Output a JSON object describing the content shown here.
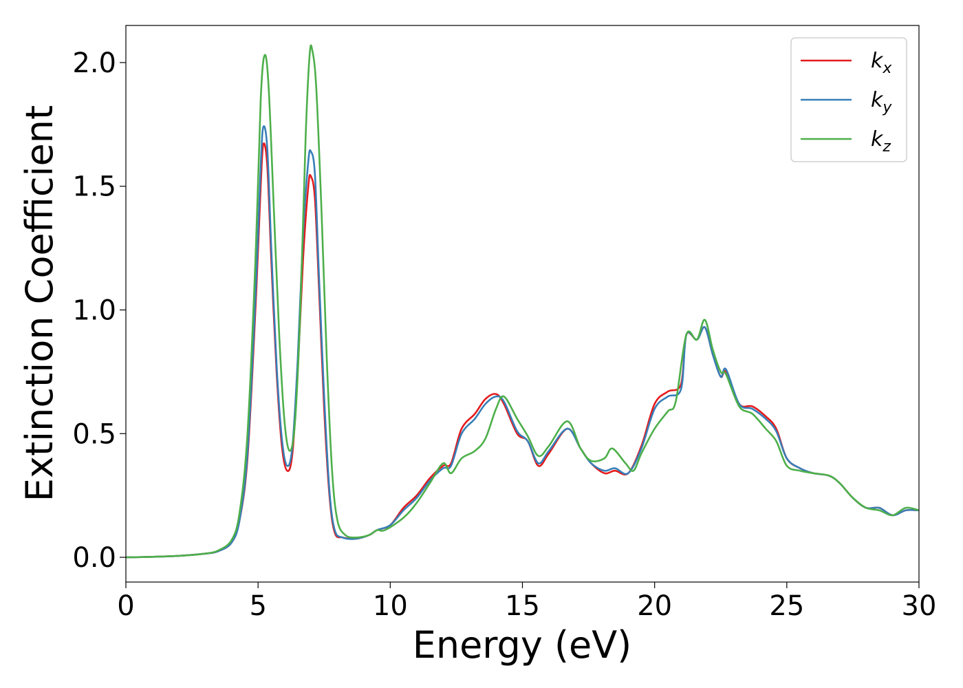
{
  "chart_data": {
    "type": "line",
    "title": "",
    "xlabel": "Energy (eV)",
    "ylabel": "Extinction Coefficient",
    "xlim": [
      0,
      30
    ],
    "ylim": [
      -0.1,
      2.15
    ],
    "xticks": [
      "0",
      "5",
      "10",
      "15",
      "20",
      "25",
      "30"
    ],
    "yticks": [
      "0.0",
      "0.5",
      "1.0",
      "1.5",
      "2.0"
    ],
    "grid": false,
    "legend_position": "top-right",
    "series": [
      {
        "name": "k",
        "subscript": "x",
        "color": "#e41a1c",
        "points": [
          [
            0,
            0
          ],
          [
            1,
            0.002
          ],
          [
            2,
            0.006
          ],
          [
            3,
            0.015
          ],
          [
            3.5,
            0.025
          ],
          [
            4,
            0.06
          ],
          [
            4.3,
            0.15
          ],
          [
            4.6,
            0.4
          ],
          [
            4.9,
            1.0
          ],
          [
            5.1,
            1.5
          ],
          [
            5.2,
            1.67
          ],
          [
            5.35,
            1.58
          ],
          [
            5.5,
            1.2
          ],
          [
            5.7,
            0.75
          ],
          [
            5.9,
            0.45
          ],
          [
            6.1,
            0.35
          ],
          [
            6.3,
            0.42
          ],
          [
            6.5,
            0.75
          ],
          [
            6.7,
            1.2
          ],
          [
            6.9,
            1.5
          ],
          [
            7.0,
            1.54
          ],
          [
            7.15,
            1.45
          ],
          [
            7.3,
            1.1
          ],
          [
            7.5,
            0.6
          ],
          [
            7.7,
            0.25
          ],
          [
            7.9,
            0.1
          ],
          [
            8.2,
            0.08
          ],
          [
            8.7,
            0.075
          ],
          [
            9.2,
            0.09
          ],
          [
            9.5,
            0.11
          ],
          [
            10,
            0.13
          ],
          [
            10.5,
            0.2
          ],
          [
            11,
            0.25
          ],
          [
            11.5,
            0.32
          ],
          [
            12,
            0.37
          ],
          [
            12.3,
            0.38
          ],
          [
            12.7,
            0.52
          ],
          [
            13.2,
            0.58
          ],
          [
            13.6,
            0.64
          ],
          [
            14,
            0.66
          ],
          [
            14.3,
            0.62
          ],
          [
            14.8,
            0.5
          ],
          [
            15.2,
            0.47
          ],
          [
            15.6,
            0.37
          ],
          [
            16,
            0.42
          ],
          [
            16.7,
            0.52
          ],
          [
            17.2,
            0.44
          ],
          [
            17.6,
            0.38
          ],
          [
            18.1,
            0.34
          ],
          [
            18.5,
            0.35
          ],
          [
            19,
            0.34
          ],
          [
            19.5,
            0.45
          ],
          [
            20,
            0.62
          ],
          [
            20.5,
            0.67
          ],
          [
            21,
            0.7
          ],
          [
            21.2,
            0.9
          ],
          [
            21.6,
            0.88
          ],
          [
            21.9,
            0.93
          ],
          [
            22.2,
            0.82
          ],
          [
            22.5,
            0.73
          ],
          [
            22.7,
            0.75
          ],
          [
            23.2,
            0.62
          ],
          [
            23.7,
            0.61
          ],
          [
            24.2,
            0.57
          ],
          [
            24.6,
            0.52
          ],
          [
            25,
            0.4
          ],
          [
            25.5,
            0.36
          ],
          [
            26,
            0.34
          ],
          [
            26.6,
            0.33
          ],
          [
            27,
            0.3
          ],
          [
            27.5,
            0.24
          ],
          [
            28,
            0.2
          ],
          [
            28.5,
            0.2
          ],
          [
            29,
            0.17
          ],
          [
            29.5,
            0.19
          ],
          [
            30,
            0.19
          ]
        ]
      },
      {
        "name": "k",
        "subscript": "y",
        "color": "#377eb8",
        "points": [
          [
            0,
            0
          ],
          [
            1,
            0.002
          ],
          [
            2,
            0.006
          ],
          [
            3,
            0.015
          ],
          [
            3.5,
            0.025
          ],
          [
            4,
            0.06
          ],
          [
            4.3,
            0.15
          ],
          [
            4.6,
            0.42
          ],
          [
            4.9,
            1.05
          ],
          [
            5.1,
            1.58
          ],
          [
            5.2,
            1.74
          ],
          [
            5.35,
            1.65
          ],
          [
            5.5,
            1.25
          ],
          [
            5.7,
            0.78
          ],
          [
            5.9,
            0.48
          ],
          [
            6.1,
            0.37
          ],
          [
            6.3,
            0.45
          ],
          [
            6.5,
            0.8
          ],
          [
            6.7,
            1.3
          ],
          [
            6.9,
            1.6
          ],
          [
            7.0,
            1.64
          ],
          [
            7.15,
            1.55
          ],
          [
            7.3,
            1.15
          ],
          [
            7.5,
            0.65
          ],
          [
            7.7,
            0.27
          ],
          [
            7.9,
            0.11
          ],
          [
            8.2,
            0.08
          ],
          [
            8.7,
            0.075
          ],
          [
            9.2,
            0.09
          ],
          [
            9.5,
            0.11
          ],
          [
            10,
            0.13
          ],
          [
            10.5,
            0.19
          ],
          [
            11,
            0.24
          ],
          [
            11.5,
            0.31
          ],
          [
            12,
            0.36
          ],
          [
            12.3,
            0.37
          ],
          [
            12.7,
            0.5
          ],
          [
            13.2,
            0.56
          ],
          [
            13.6,
            0.62
          ],
          [
            14,
            0.65
          ],
          [
            14.3,
            0.63
          ],
          [
            14.8,
            0.51
          ],
          [
            15.2,
            0.47
          ],
          [
            15.6,
            0.38
          ],
          [
            16,
            0.43
          ],
          [
            16.7,
            0.52
          ],
          [
            17.2,
            0.44
          ],
          [
            17.6,
            0.38
          ],
          [
            18.1,
            0.35
          ],
          [
            18.5,
            0.36
          ],
          [
            19,
            0.34
          ],
          [
            19.5,
            0.44
          ],
          [
            20,
            0.6
          ],
          [
            20.5,
            0.65
          ],
          [
            21,
            0.68
          ],
          [
            21.2,
            0.9
          ],
          [
            21.6,
            0.88
          ],
          [
            21.9,
            0.93
          ],
          [
            22.2,
            0.82
          ],
          [
            22.5,
            0.73
          ],
          [
            22.7,
            0.76
          ],
          [
            23.2,
            0.62
          ],
          [
            23.7,
            0.6
          ],
          [
            24.2,
            0.56
          ],
          [
            24.6,
            0.51
          ],
          [
            25,
            0.4
          ],
          [
            25.5,
            0.36
          ],
          [
            26,
            0.34
          ],
          [
            26.6,
            0.33
          ],
          [
            27,
            0.3
          ],
          [
            27.5,
            0.24
          ],
          [
            28,
            0.2
          ],
          [
            28.5,
            0.2
          ],
          [
            29,
            0.17
          ],
          [
            29.5,
            0.19
          ],
          [
            30,
            0.19
          ]
        ]
      },
      {
        "name": "k",
        "subscript": "z",
        "color": "#4daf4a",
        "points": [
          [
            0,
            0
          ],
          [
            1,
            0.002
          ],
          [
            2,
            0.006
          ],
          [
            3,
            0.015
          ],
          [
            3.5,
            0.028
          ],
          [
            4,
            0.07
          ],
          [
            4.3,
            0.18
          ],
          [
            4.6,
            0.5
          ],
          [
            4.9,
            1.2
          ],
          [
            5.1,
            1.85
          ],
          [
            5.25,
            2.03
          ],
          [
            5.4,
            1.9
          ],
          [
            5.6,
            1.4
          ],
          [
            5.8,
            0.9
          ],
          [
            6.0,
            0.55
          ],
          [
            6.2,
            0.43
          ],
          [
            6.4,
            0.55
          ],
          [
            6.6,
            1.0
          ],
          [
            6.8,
            1.7
          ],
          [
            6.95,
            2.03
          ],
          [
            7.05,
            2.05
          ],
          [
            7.2,
            1.9
          ],
          [
            7.4,
            1.4
          ],
          [
            7.6,
            0.8
          ],
          [
            7.8,
            0.35
          ],
          [
            8.0,
            0.15
          ],
          [
            8.3,
            0.09
          ],
          [
            8.7,
            0.08
          ],
          [
            9.2,
            0.09
          ],
          [
            9.5,
            0.11
          ],
          [
            9.8,
            0.11
          ],
          [
            10.5,
            0.16
          ],
          [
            11,
            0.22
          ],
          [
            11.5,
            0.3
          ],
          [
            12,
            0.38
          ],
          [
            12.3,
            0.34
          ],
          [
            12.7,
            0.4
          ],
          [
            13.2,
            0.43
          ],
          [
            13.6,
            0.48
          ],
          [
            14,
            0.6
          ],
          [
            14.3,
            0.65
          ],
          [
            14.8,
            0.56
          ],
          [
            15.2,
            0.49
          ],
          [
            15.6,
            0.41
          ],
          [
            16,
            0.45
          ],
          [
            16.7,
            0.55
          ],
          [
            17.2,
            0.44
          ],
          [
            17.6,
            0.39
          ],
          [
            18.1,
            0.4
          ],
          [
            18.4,
            0.44
          ],
          [
            18.9,
            0.38
          ],
          [
            19.2,
            0.35
          ],
          [
            19.5,
            0.42
          ],
          [
            20,
            0.52
          ],
          [
            20.5,
            0.59
          ],
          [
            20.8,
            0.63
          ],
          [
            21.2,
            0.9
          ],
          [
            21.6,
            0.88
          ],
          [
            21.9,
            0.96
          ],
          [
            22.2,
            0.84
          ],
          [
            22.5,
            0.75
          ],
          [
            22.7,
            0.74
          ],
          [
            23.2,
            0.61
          ],
          [
            23.7,
            0.58
          ],
          [
            24.2,
            0.52
          ],
          [
            24.6,
            0.47
          ],
          [
            25,
            0.37
          ],
          [
            25.5,
            0.35
          ],
          [
            26,
            0.34
          ],
          [
            26.6,
            0.33
          ],
          [
            27,
            0.3
          ],
          [
            27.5,
            0.24
          ],
          [
            28,
            0.2
          ],
          [
            28.5,
            0.19
          ],
          [
            29,
            0.17
          ],
          [
            29.5,
            0.2
          ],
          [
            30,
            0.19
          ]
        ]
      }
    ]
  }
}
